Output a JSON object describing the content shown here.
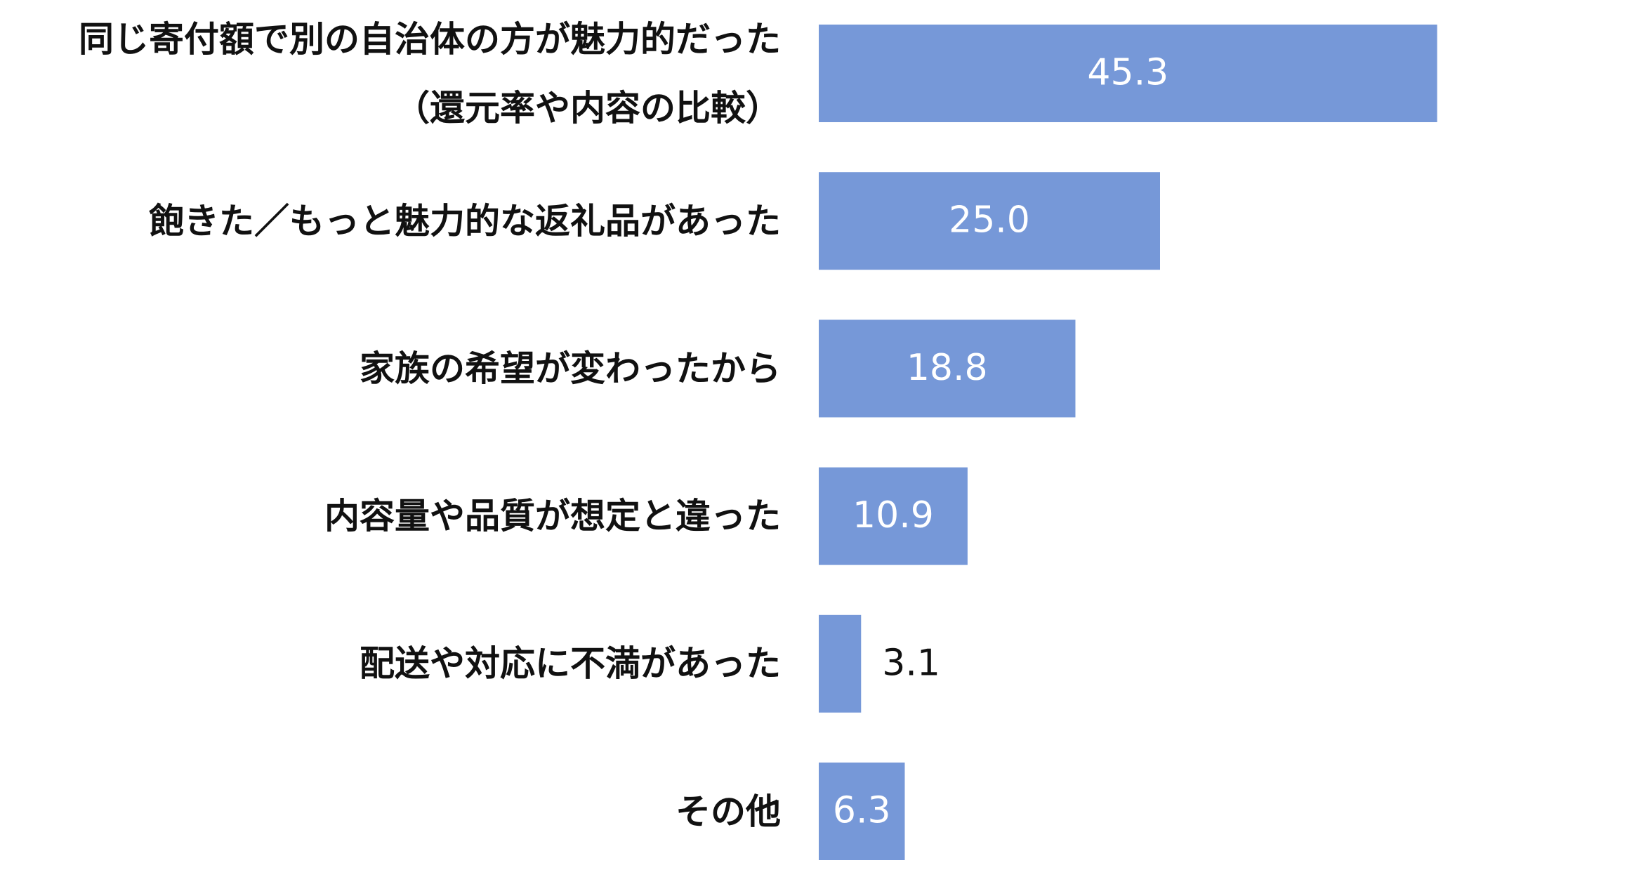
{
  "chart_data": {
    "type": "barh",
    "categories": [
      "同じ寄付額で別の自治体の方が魅力的だった\n（還元率や内容の比較）",
      "飽きた／もっと魅力的な返礼品があった",
      "家族の希望が変わったから",
      "内容量や品質が想定と違った",
      "配送や対応に不満があった",
      "その他"
    ],
    "values": [
      45.3,
      25.0,
      18.8,
      10.9,
      3.1,
      6.3
    ],
    "value_labels": [
      "45.3",
      "25.0",
      "18.8",
      "10.9",
      "3.1",
      "6.3"
    ],
    "color": "#7698d8"
  }
}
